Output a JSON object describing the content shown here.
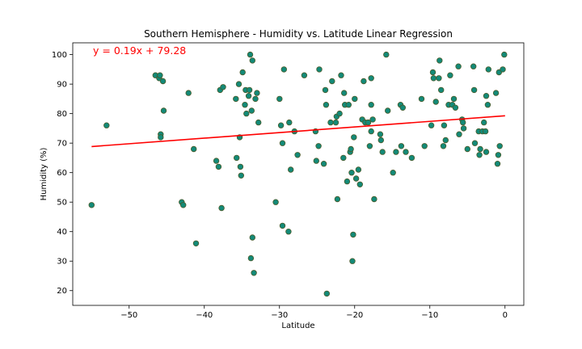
{
  "chart_data": {
    "type": "scatter",
    "title": "Southern Hemisphere - Humidity vs. Latitude Linear Regression",
    "xlabel": "Latitude",
    "ylabel": "Humidity (%)",
    "xlim": [
      -57.5,
      2.5
    ],
    "ylim": [
      15,
      104
    ],
    "xticks": [
      -50,
      -40,
      -30,
      -20,
      -10,
      0
    ],
    "xtick_labels": [
      "−50",
      "−40",
      "−30",
      "−20",
      "−10",
      "0"
    ],
    "yticks": [
      20,
      30,
      40,
      50,
      60,
      70,
      80,
      90,
      100
    ],
    "grid": false,
    "regression": {
      "equation": "y = 0.19x + 79.28",
      "slope": 0.19,
      "intercept": 79.28,
      "x_range": [
        -55,
        0
      ]
    },
    "colors": {
      "point_fill": "#138a78",
      "point_edge": "#4a5a2a",
      "line": "#ff0000",
      "equation": "#ff0000"
    },
    "points": [
      [
        -55,
        49
      ],
      [
        -53,
        76
      ],
      [
        -46.5,
        93
      ],
      [
        -46,
        92
      ],
      [
        -45.9,
        93
      ],
      [
        -45.8,
        73
      ],
      [
        -45.8,
        72
      ],
      [
        -45.5,
        91
      ],
      [
        -45.4,
        81
      ],
      [
        -43,
        50
      ],
      [
        -42.8,
        49
      ],
      [
        -42.1,
        87
      ],
      [
        -41.4,
        68
      ],
      [
        -41.1,
        36
      ],
      [
        -38.4,
        64
      ],
      [
        -38.1,
        62
      ],
      [
        -37.9,
        88
      ],
      [
        -37.7,
        48
      ],
      [
        -37.5,
        89
      ],
      [
        -35.8,
        85
      ],
      [
        -35.7,
        65
      ],
      [
        -35.4,
        90
      ],
      [
        -35.3,
        72
      ],
      [
        -35.2,
        62
      ],
      [
        -35.1,
        59
      ],
      [
        -34.9,
        94
      ],
      [
        -34.6,
        83
      ],
      [
        -34.5,
        88
      ],
      [
        -34.4,
        80
      ],
      [
        -34.1,
        86
      ],
      [
        -34,
        88
      ],
      [
        -33.9,
        100
      ],
      [
        -33.8,
        31
      ],
      [
        -33.7,
        81
      ],
      [
        -33.6,
        38
      ],
      [
        -33.6,
        98
      ],
      [
        -33.4,
        26
      ],
      [
        -33.2,
        85
      ],
      [
        -33,
        87
      ],
      [
        -32.8,
        77
      ],
      [
        -30.5,
        50
      ],
      [
        -30,
        85
      ],
      [
        -29.8,
        76
      ],
      [
        -29.6,
        42
      ],
      [
        -29.6,
        70
      ],
      [
        -29.4,
        95
      ],
      [
        -28.8,
        40
      ],
      [
        -28.7,
        77
      ],
      [
        -28.5,
        61
      ],
      [
        -28,
        74
      ],
      [
        -27.6,
        66
      ],
      [
        -26.7,
        93
      ],
      [
        -25.2,
        74
      ],
      [
        -25.1,
        64
      ],
      [
        -24.8,
        69
      ],
      [
        -24.7,
        95
      ],
      [
        -24.1,
        63
      ],
      [
        -23.9,
        88
      ],
      [
        -23.8,
        83
      ],
      [
        -23.7,
        19
      ],
      [
        -23.2,
        77
      ],
      [
        -23,
        91
      ],
      [
        -22.5,
        77
      ],
      [
        -22.4,
        79
      ],
      [
        -22.3,
        51
      ],
      [
        -22,
        80
      ],
      [
        -21.8,
        93
      ],
      [
        -21.5,
        65
      ],
      [
        -21.4,
        87
      ],
      [
        -21.3,
        83
      ],
      [
        -21,
        57
      ],
      [
        -20.8,
        83
      ],
      [
        -20.6,
        67
      ],
      [
        -20.5,
        68
      ],
      [
        -20.4,
        60
      ],
      [
        -20.3,
        30
      ],
      [
        -20.2,
        39
      ],
      [
        -20.1,
        72
      ],
      [
        -20,
        85
      ],
      [
        -19.8,
        58
      ],
      [
        -19.5,
        61
      ],
      [
        -19.3,
        56
      ],
      [
        -19,
        78
      ],
      [
        -18.8,
        91
      ],
      [
        -18.6,
        77
      ],
      [
        -18.2,
        77
      ],
      [
        -18,
        69
      ],
      [
        -17.8,
        74
      ],
      [
        -17.8,
        83
      ],
      [
        -17.6,
        78
      ],
      [
        -17.4,
        51
      ],
      [
        -17.8,
        92
      ],
      [
        -16.6,
        73
      ],
      [
        -16.5,
        71
      ],
      [
        -16.3,
        67
      ],
      [
        -15.8,
        100
      ],
      [
        -15.6,
        81
      ],
      [
        -14.9,
        60
      ],
      [
        -14.5,
        67
      ],
      [
        -13.9,
        83
      ],
      [
        -13.8,
        69
      ],
      [
        -13.6,
        82
      ],
      [
        -13.2,
        67
      ],
      [
        -12.4,
        65
      ],
      [
        -11.1,
        85
      ],
      [
        -10.7,
        69
      ],
      [
        -9.8,
        76
      ],
      [
        -9.6,
        94
      ],
      [
        -9.5,
        92
      ],
      [
        -9.2,
        84
      ],
      [
        -8.8,
        92
      ],
      [
        -8.7,
        98
      ],
      [
        -8.5,
        88
      ],
      [
        -8.2,
        69
      ],
      [
        -8.1,
        76
      ],
      [
        -7.9,
        71
      ],
      [
        -7.5,
        83
      ],
      [
        -7.3,
        93
      ],
      [
        -7,
        83
      ],
      [
        -6.8,
        85
      ],
      [
        -6.6,
        82
      ],
      [
        -6.2,
        96
      ],
      [
        -6.1,
        73
      ],
      [
        -5.7,
        78
      ],
      [
        -5.6,
        77
      ],
      [
        -5.5,
        75
      ],
      [
        -5,
        68
      ],
      [
        -4.2,
        96
      ],
      [
        -4.1,
        88
      ],
      [
        -4,
        70
      ],
      [
        -3.5,
        74
      ],
      [
        -3.4,
        66
      ],
      [
        -3.3,
        68
      ],
      [
        -3,
        74
      ],
      [
        -2.8,
        77
      ],
      [
        -2.6,
        74
      ],
      [
        -2.5,
        86
      ],
      [
        -2.3,
        83
      ],
      [
        -2.2,
        95
      ],
      [
        -2.5,
        67
      ],
      [
        -1.2,
        87
      ],
      [
        -1,
        63
      ],
      [
        -0.9,
        66
      ],
      [
        -0.8,
        94
      ],
      [
        -0.7,
        69
      ],
      [
        -0.3,
        95
      ],
      [
        -0.1,
        100
      ]
    ]
  }
}
